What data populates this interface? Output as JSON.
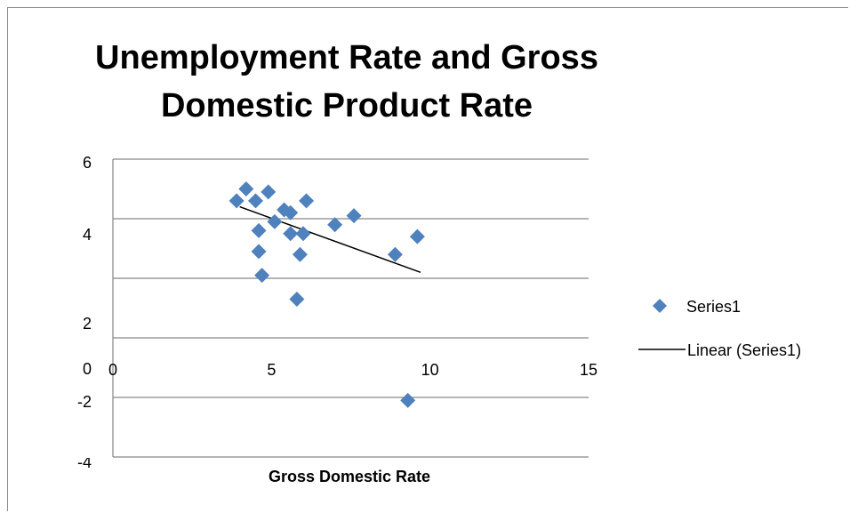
{
  "chart_data": {
    "type": "scatter",
    "title": "Unemployment Rate and Gross Domestic Product Rate",
    "xlabel": "Gross Domestic Rate",
    "ylabel": "",
    "xlim": [
      0,
      15
    ],
    "ylim": [
      -4,
      6
    ],
    "x_ticks": [
      "0",
      "5",
      "10",
      "15"
    ],
    "y_ticks": [
      "6",
      "4",
      "2",
      "0",
      "-2",
      "-4"
    ],
    "grid": "horizontal",
    "legend_position": "right",
    "series": [
      {
        "name": "Series1",
        "marker": "diamond",
        "color": "#4f81bd",
        "points": [
          [
            4.2,
            5.0
          ],
          [
            4.9,
            4.9
          ],
          [
            4.5,
            4.6
          ],
          [
            3.9,
            4.6
          ],
          [
            6.1,
            4.6
          ],
          [
            5.4,
            4.3
          ],
          [
            5.6,
            4.2
          ],
          [
            7.6,
            4.1
          ],
          [
            5.1,
            3.9
          ],
          [
            7.0,
            3.8
          ],
          [
            4.6,
            3.6
          ],
          [
            5.6,
            3.5
          ],
          [
            6.0,
            3.5
          ],
          [
            9.6,
            3.4
          ],
          [
            4.6,
            2.9
          ],
          [
            5.9,
            2.8
          ],
          [
            8.9,
            2.8
          ],
          [
            4.7,
            2.1
          ],
          [
            5.8,
            1.3
          ],
          [
            9.3,
            -2.1
          ]
        ]
      }
    ],
    "trendline": {
      "name": "Linear (Series1)",
      "color": "#000000",
      "from": [
        4.0,
        4.4
      ],
      "to": [
        9.7,
        2.2
      ]
    }
  }
}
